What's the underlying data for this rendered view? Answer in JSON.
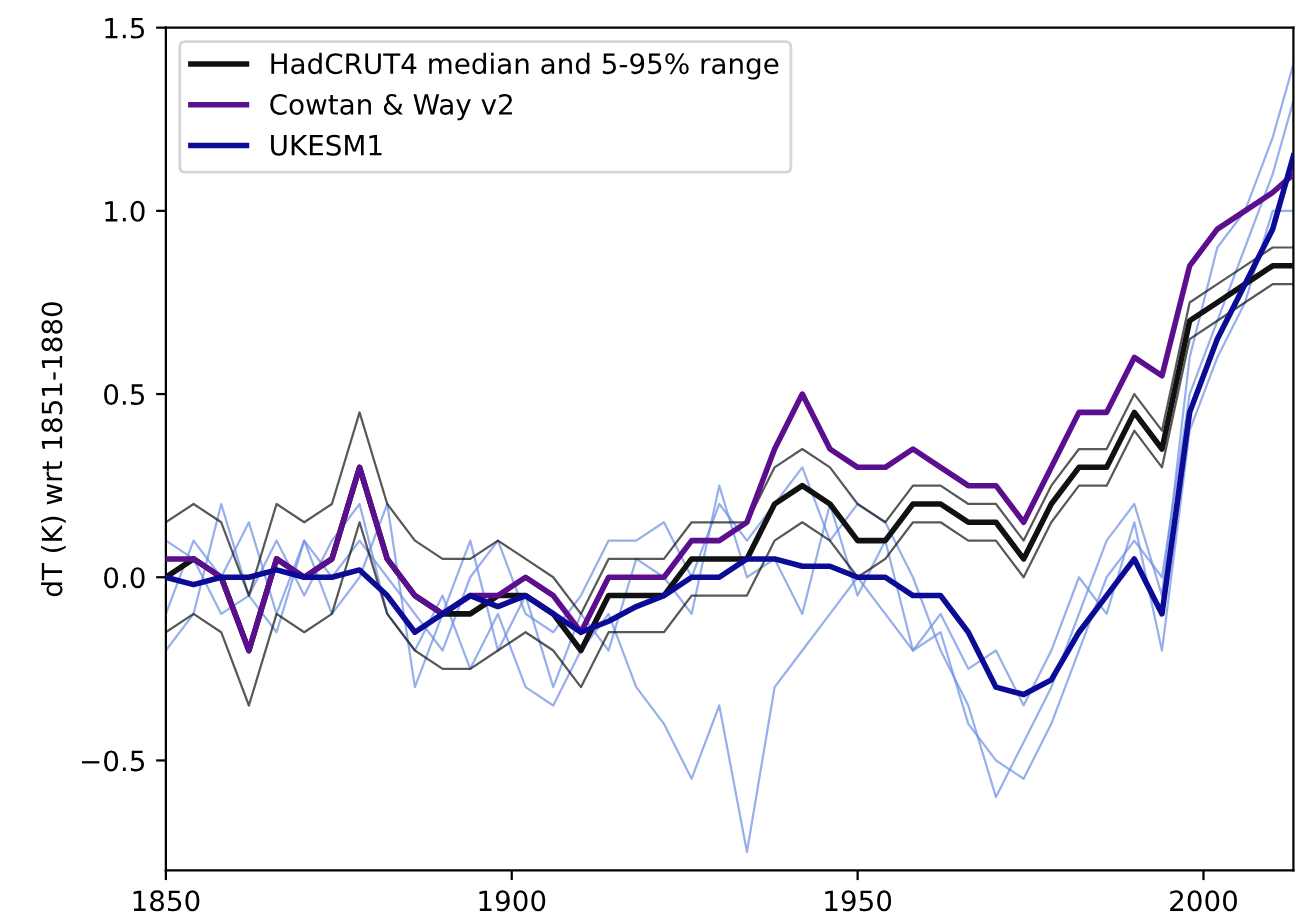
{
  "chart_data": {
    "type": "line",
    "ylabel": "dT (K) wrt 1851-1880",
    "x": [
      1850,
      1854,
      1858,
      1862,
      1866,
      1870,
      1874,
      1878,
      1882,
      1886,
      1890,
      1894,
      1898,
      1902,
      1906,
      1910,
      1914,
      1918,
      1922,
      1926,
      1930,
      1934,
      1938,
      1942,
      1946,
      1950,
      1954,
      1958,
      1962,
      1966,
      1970,
      1974,
      1978,
      1982,
      1986,
      1990,
      1994,
      1998,
      2002,
      2006,
      2010,
      2013
    ],
    "series": [
      {
        "color": "#6b8fe3",
        "values": [
          0.1,
          0.05,
          -0.1,
          -0.05,
          0.1,
          -0.05,
          0.1,
          0.2,
          -0.1,
          -0.2,
          -0.05,
          -0.25,
          -0.1,
          -0.3,
          -0.35,
          -0.2,
          -0.1,
          -0.3,
          -0.4,
          -0.55,
          -0.35,
          -0.75,
          -0.3,
          -0.2,
          -0.1,
          0.0,
          -0.1,
          -0.2,
          -0.15,
          -0.4,
          -0.5,
          -0.55,
          -0.4,
          -0.2,
          0.0,
          0.1,
          0.0,
          0.5,
          0.7,
          0.9,
          1.1,
          1.3
        ]
      },
      {
        "color": "#6b8fe3",
        "values": [
          -0.1,
          0.1,
          0.0,
          0.15,
          -0.1,
          0.1,
          0.0,
          0.1,
          0.0,
          -0.1,
          -0.2,
          0.0,
          0.1,
          -0.1,
          -0.15,
          -0.05,
          0.1,
          0.1,
          0.15,
          0.0,
          0.2,
          0.1,
          0.2,
          0.3,
          0.1,
          0.2,
          0.15,
          0.0,
          -0.2,
          -0.35,
          -0.6,
          -0.45,
          -0.3,
          -0.1,
          0.1,
          0.2,
          -0.05,
          0.6,
          0.9,
          1.0,
          1.2,
          1.4
        ]
      },
      {
        "color": "#6b8fe3",
        "values": [
          -0.2,
          -0.1,
          0.2,
          -0.05,
          -0.15,
          0.1,
          -0.1,
          0.0,
          0.2,
          -0.3,
          -0.1,
          0.1,
          -0.2,
          -0.05,
          -0.3,
          -0.1,
          -0.2,
          0.05,
          0.0,
          -0.1,
          0.25,
          0.0,
          0.05,
          -0.1,
          0.2,
          -0.05,
          0.1,
          -0.2,
          -0.1,
          -0.25,
          -0.2,
          -0.35,
          -0.2,
          0.0,
          -0.1,
          0.15,
          -0.2,
          0.4,
          0.6,
          0.75,
          1.0,
          1.0
        ]
      },
      {
        "color": "#111111",
        "values": [
          -0.15,
          -0.1,
          -0.15,
          -0.35,
          -0.1,
          -0.15,
          -0.1,
          0.15,
          -0.1,
          -0.2,
          -0.25,
          -0.25,
          -0.2,
          -0.15,
          -0.2,
          -0.3,
          -0.15,
          -0.15,
          -0.15,
          -0.05,
          -0.05,
          -0.05,
          0.1,
          0.15,
          0.1,
          0.0,
          0.05,
          0.15,
          0.15,
          0.1,
          0.1,
          0.0,
          0.15,
          0.25,
          0.25,
          0.4,
          0.3,
          0.65,
          0.7,
          0.75,
          0.8,
          0.8
        ]
      },
      {
        "color": "#111111",
        "values": [
          0.15,
          0.2,
          0.15,
          -0.05,
          0.2,
          0.15,
          0.2,
          0.45,
          0.2,
          0.1,
          0.05,
          0.05,
          0.1,
          0.05,
          0.0,
          -0.1,
          0.05,
          0.05,
          0.05,
          0.15,
          0.15,
          0.15,
          0.3,
          0.35,
          0.3,
          0.2,
          0.15,
          0.25,
          0.25,
          0.2,
          0.2,
          0.1,
          0.25,
          0.35,
          0.35,
          0.5,
          0.4,
          0.75,
          0.8,
          0.85,
          0.9,
          0.9
        ]
      },
      {
        "name": "HadCRUT4 median and 5-95% range",
        "color": "#111111",
        "values": [
          0.0,
          0.05,
          0.0,
          -0.2,
          0.05,
          0.0,
          0.05,
          0.3,
          0.05,
          -0.05,
          -0.1,
          -0.1,
          -0.05,
          -0.05,
          -0.1,
          -0.2,
          -0.05,
          -0.05,
          -0.05,
          0.05,
          0.05,
          0.05,
          0.2,
          0.25,
          0.2,
          0.1,
          0.1,
          0.2,
          0.2,
          0.15,
          0.15,
          0.05,
          0.2,
          0.3,
          0.3,
          0.45,
          0.35,
          0.7,
          0.75,
          0.8,
          0.85,
          0.85
        ]
      },
      {
        "name": "Cowtan & Way v2",
        "color": "#5b0f8e",
        "values": [
          0.05,
          0.05,
          0.0,
          -0.2,
          0.05,
          0.0,
          0.05,
          0.3,
          0.05,
          -0.05,
          -0.1,
          -0.05,
          -0.05,
          0.0,
          -0.05,
          -0.15,
          0.0,
          0.0,
          0.0,
          0.1,
          0.1,
          0.15,
          0.35,
          0.5,
          0.35,
          0.3,
          0.3,
          0.35,
          0.3,
          0.25,
          0.25,
          0.15,
          0.3,
          0.45,
          0.45,
          0.6,
          0.55,
          0.85,
          0.95,
          1.0,
          1.05,
          1.1
        ]
      },
      {
        "name": "UKESM1",
        "color": "#0b0b96",
        "values": [
          0.0,
          -0.02,
          0.0,
          0.0,
          0.02,
          0.0,
          0.0,
          0.02,
          -0.05,
          -0.15,
          -0.1,
          -0.05,
          -0.08,
          -0.05,
          -0.1,
          -0.15,
          -0.12,
          -0.08,
          -0.05,
          0.0,
          0.0,
          0.05,
          0.05,
          0.03,
          0.03,
          0.0,
          0.0,
          -0.05,
          -0.05,
          -0.15,
          -0.3,
          -0.32,
          -0.28,
          -0.15,
          -0.05,
          0.05,
          -0.1,
          0.45,
          0.65,
          0.8,
          0.95,
          1.15
        ]
      }
    ],
    "xlim": [
      1850,
      2013
    ],
    "ylim": [
      -0.8,
      1.5
    ],
    "xticks": [
      1850,
      1900,
      1950,
      2000
    ],
    "yticks": [
      {
        "value": -0.5,
        "label": "−0.5"
      },
      {
        "value": 0.0,
        "label": "0.0"
      },
      {
        "value": 0.5,
        "label": "0.5"
      },
      {
        "value": 1.0,
        "label": "1.0"
      },
      {
        "value": 1.5,
        "label": "1.5"
      }
    ],
    "legend": "top left",
    "grid": false,
    "line_style": "solid",
    "marker": "none"
  }
}
